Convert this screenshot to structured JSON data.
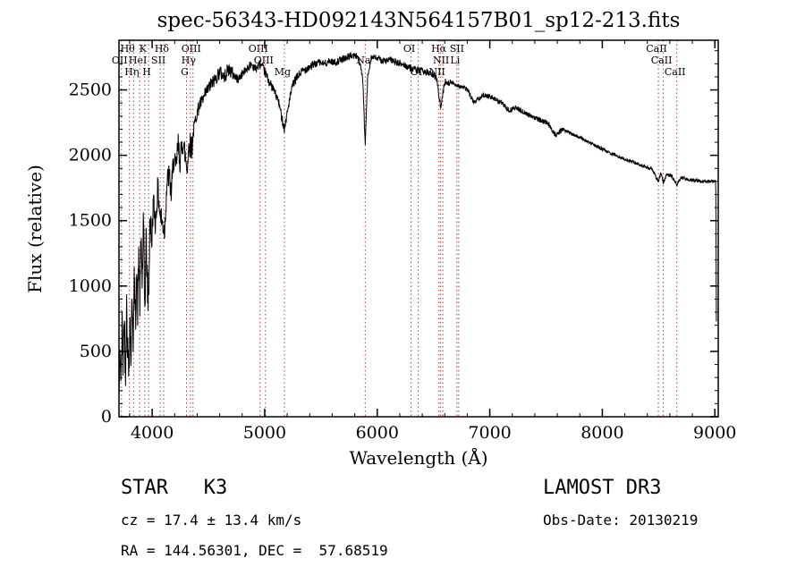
{
  "chart_data": {
    "type": "line",
    "title": "spec-56343-HD092143N564157B01_sp12-213.fits",
    "xlabel": "Wavelength (Å)",
    "ylabel": "Flux (relative)",
    "xlim": [
      3705,
      9030
    ],
    "ylim": [
      0,
      2880
    ],
    "xticks": [
      4000,
      5000,
      6000,
      7000,
      8000,
      9000
    ],
    "yticks": [
      0,
      500,
      1000,
      1500,
      2000,
      2500
    ],
    "x_minor_step": 200,
    "y_minor_step": 100,
    "grid": false,
    "line_color": "#000000",
    "marker_line_color": "#aa4444",
    "spectral_lines": [
      {
        "label": "OII",
        "wl": 3727,
        "row": 1
      },
      {
        "label": "Hθ",
        "wl": 3798,
        "row": 0
      },
      {
        "label": "Hη",
        "wl": 3835,
        "row": 2
      },
      {
        "label": "HeI",
        "wl": 3889,
        "row": 1
      },
      {
        "label": "K",
        "wl": 3934,
        "row": 0
      },
      {
        "label": "H",
        "wl": 3968,
        "row": 2
      },
      {
        "label": "SII",
        "wl": 4072,
        "row": 1
      },
      {
        "label": "Hδ",
        "wl": 4102,
        "row": 0
      },
      {
        "label": "G",
        "wl": 4305,
        "row": 2
      },
      {
        "label": "Hγ",
        "wl": 4340,
        "row": 1
      },
      {
        "label": "OIII",
        "wl": 4363,
        "row": 0
      },
      {
        "label": "OIII",
        "wl": 4959,
        "row": 0
      },
      {
        "label": "OIII",
        "wl": 5007,
        "row": 1
      },
      {
        "label": "Mg",
        "wl": 5175,
        "row": 2
      },
      {
        "label": "Na",
        "wl": 5893,
        "row": 1
      },
      {
        "label": "OI",
        "wl": 6300,
        "row": 0
      },
      {
        "label": "OI",
        "wl": 6364,
        "row": 2
      },
      {
        "label": "NII",
        "wl": 6548,
        "row": 2
      },
      {
        "label": "Hα",
        "wl": 6563,
        "row": 0
      },
      {
        "label": "NII",
        "wl": 6583,
        "row": 1
      },
      {
        "label": "Li",
        "wl": 6708,
        "row": 1
      },
      {
        "label": "SII",
        "wl": 6724,
        "row": 0
      },
      {
        "label": "CaII",
        "wl": 8498,
        "row": 0
      },
      {
        "label": "CaII",
        "wl": 8542,
        "row": 1
      },
      {
        "label": "CaII",
        "wl": 8662,
        "row": 2
      }
    ],
    "continuum": [
      [
        3706,
        150
      ],
      [
        3715,
        520
      ],
      [
        3724,
        260
      ],
      [
        3733,
        700
      ],
      [
        3742,
        380
      ],
      [
        3752,
        820
      ],
      [
        3762,
        300
      ],
      [
        3772,
        900
      ],
      [
        3782,
        520
      ],
      [
        3792,
        350
      ],
      [
        3802,
        780
      ],
      [
        3812,
        450
      ],
      [
        3822,
        950
      ],
      [
        3832,
        600
      ],
      [
        3842,
        1050
      ],
      [
        3852,
        720
      ],
      [
        3862,
        1150
      ],
      [
        3872,
        800
      ],
      [
        3882,
        1280
      ],
      [
        3892,
        850
      ],
      [
        3902,
        1400
      ],
      [
        3912,
        1000
      ],
      [
        3922,
        1500
      ],
      [
        3934,
        820
      ],
      [
        3946,
        1350
      ],
      [
        3958,
        1000
      ],
      [
        3968,
        850
      ],
      [
        3980,
        1550
      ],
      [
        3995,
        1300
      ],
      [
        4010,
        1650
      ],
      [
        4030,
        1480
      ],
      [
        4050,
        1750
      ],
      [
        4070,
        1550
      ],
      [
        4090,
        1480
      ],
      [
        4110,
        1420
      ],
      [
        4130,
        1780
      ],
      [
        4150,
        1850
      ],
      [
        4170,
        1700
      ],
      [
        4190,
        1980
      ],
      [
        4210,
        1880
      ],
      [
        4230,
        2080
      ],
      [
        4250,
        1950
      ],
      [
        4270,
        2120
      ],
      [
        4290,
        2020
      ],
      [
        4310,
        1900
      ],
      [
        4330,
        2100
      ],
      [
        4350,
        2050
      ],
      [
        4370,
        2200
      ],
      [
        4390,
        2300
      ],
      [
        4420,
        2380
      ],
      [
        4450,
        2420
      ],
      [
        4480,
        2480
      ],
      [
        4520,
        2540
      ],
      [
        4560,
        2580
      ],
      [
        4600,
        2640
      ],
      [
        4640,
        2600
      ],
      [
        4680,
        2660
      ],
      [
        4720,
        2620
      ],
      [
        4760,
        2580
      ],
      [
        4800,
        2620
      ],
      [
        4840,
        2660
      ],
      [
        4880,
        2700
      ],
      [
        4920,
        2660
      ],
      [
        4960,
        2700
      ],
      [
        5000,
        2640
      ],
      [
        5040,
        2560
      ],
      [
        5080,
        2500
      ],
      [
        5120,
        2420
      ],
      [
        5155,
        2280
      ],
      [
        5175,
        2200
      ],
      [
        5195,
        2300
      ],
      [
        5220,
        2420
      ],
      [
        5250,
        2540
      ],
      [
        5290,
        2600
      ],
      [
        5330,
        2640
      ],
      [
        5380,
        2670
      ],
      [
        5430,
        2690
      ],
      [
        5480,
        2710
      ],
      [
        5530,
        2700
      ],
      [
        5580,
        2720
      ],
      [
        5630,
        2710
      ],
      [
        5680,
        2730
      ],
      [
        5730,
        2750
      ],
      [
        5780,
        2765
      ],
      [
        5830,
        2755
      ],
      [
        5870,
        2600
      ],
      [
        5893,
        2080
      ],
      [
        5915,
        2600
      ],
      [
        5945,
        2750
      ],
      [
        6000,
        2740
      ],
      [
        6060,
        2720
      ],
      [
        6120,
        2730
      ],
      [
        6180,
        2705
      ],
      [
        6240,
        2690
      ],
      [
        6300,
        2665
      ],
      [
        6360,
        2650
      ],
      [
        6420,
        2640
      ],
      [
        6480,
        2620
      ],
      [
        6530,
        2590
      ],
      [
        6563,
        2360
      ],
      [
        6600,
        2560
      ],
      [
        6660,
        2555
      ],
      [
        6730,
        2530
      ],
      [
        6800,
        2505
      ],
      [
        6860,
        2400
      ],
      [
        6890,
        2430
      ],
      [
        6950,
        2465
      ],
      [
        7020,
        2440
      ],
      [
        7100,
        2405
      ],
      [
        7170,
        2340
      ],
      [
        7230,
        2365
      ],
      [
        7320,
        2320
      ],
      [
        7420,
        2280
      ],
      [
        7520,
        2240
      ],
      [
        7590,
        2150
      ],
      [
        7640,
        2200
      ],
      [
        7720,
        2170
      ],
      [
        7800,
        2135
      ],
      [
        7880,
        2100
      ],
      [
        7960,
        2065
      ],
      [
        8040,
        2030
      ],
      [
        8120,
        2000
      ],
      [
        8200,
        1970
      ],
      [
        8280,
        1945
      ],
      [
        8360,
        1920
      ],
      [
        8440,
        1895
      ],
      [
        8498,
        1800
      ],
      [
        8520,
        1870
      ],
      [
        8542,
        1790
      ],
      [
        8575,
        1855
      ],
      [
        8620,
        1840
      ],
      [
        8662,
        1770
      ],
      [
        8700,
        1830
      ],
      [
        8760,
        1818
      ],
      [
        8820,
        1808
      ],
      [
        8880,
        1802
      ],
      [
        8940,
        1798
      ],
      [
        9000,
        1800
      ],
      [
        9008,
        1805
      ],
      [
        9015,
        430
      ]
    ],
    "noise_segments": [
      {
        "to": 3990,
        "amp": 165
      },
      {
        "to": 4360,
        "amp": 105
      },
      {
        "to": 4720,
        "amp": 55
      },
      {
        "to": 5450,
        "amp": 35
      },
      {
        "to": 6650,
        "amp": 27
      },
      {
        "to": 7650,
        "amp": 19
      },
      {
        "to": 9020,
        "amp": 13
      }
    ]
  },
  "footer": {
    "class_line": "STAR   K3",
    "cz_line": "cz = 17.4 ± 13.4 km/s",
    "radec_line": "RA = 144.56301, DEC =  57.68519",
    "survey": "LAMOST DR3",
    "obs_date_line": "Obs-Date: 20130219"
  }
}
